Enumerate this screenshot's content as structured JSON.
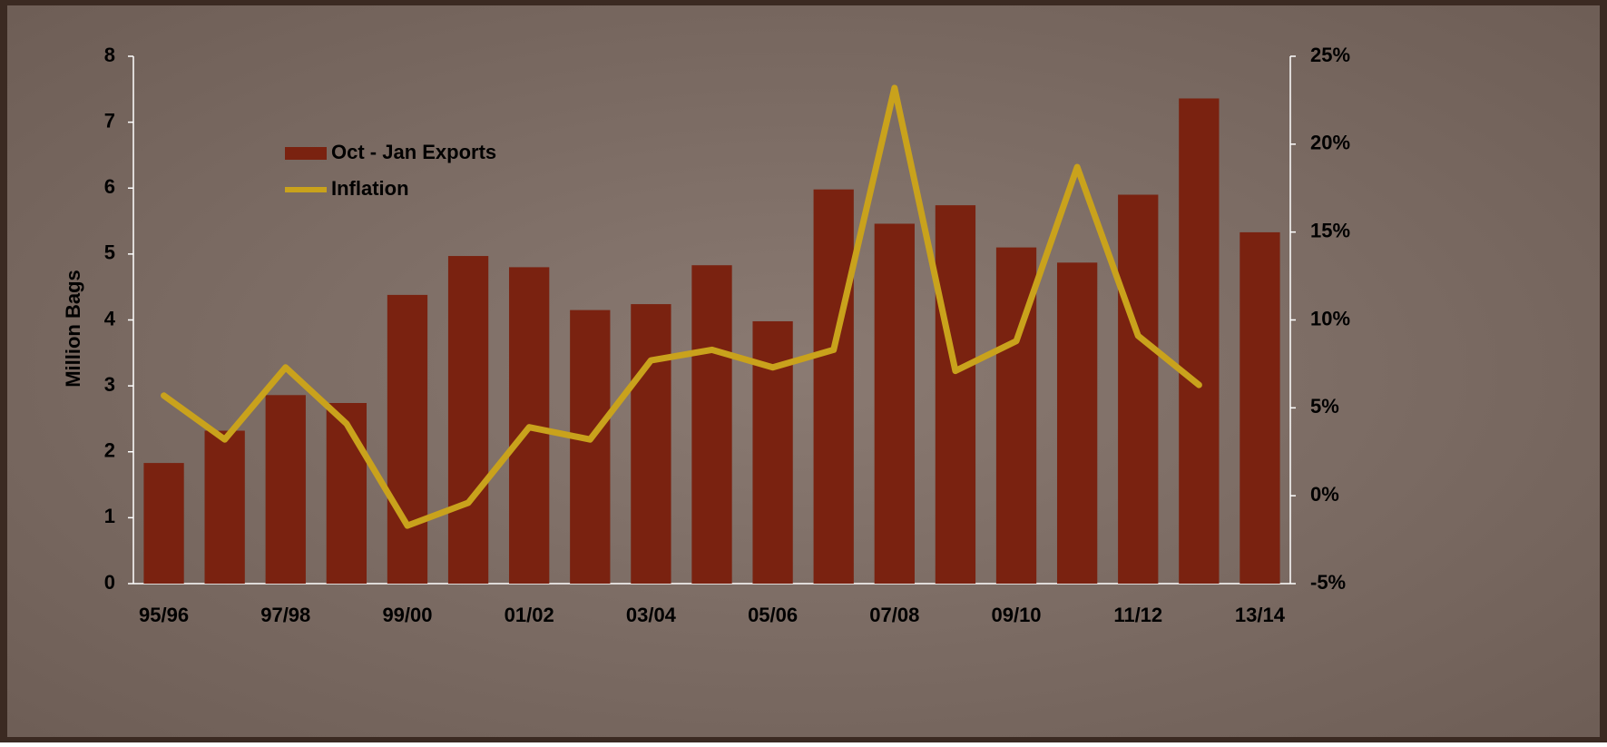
{
  "chart_data": {
    "type": "bar-line",
    "y_label": "Million Bags",
    "categories": [
      "95/96",
      null,
      "97/98",
      null,
      "99/00",
      null,
      "01/02",
      null,
      "03/04",
      null,
      "05/06",
      null,
      "07/08",
      null,
      "09/10",
      null,
      "11/12",
      null,
      "13/14"
    ],
    "series": [
      {
        "name": "Oct - Jan Exports",
        "type": "bar",
        "color": "#7a2210",
        "values": [
          1.83,
          2.32,
          2.86,
          2.74,
          4.38,
          4.97,
          4.8,
          4.15,
          4.24,
          4.83,
          3.98,
          5.98,
          5.46,
          5.74,
          5.1,
          4.87,
          5.9,
          7.36,
          5.33
        ]
      },
      {
        "name": "Inflation",
        "type": "line",
        "axis": "y2",
        "color": "#c9a21c",
        "values": [
          5.7,
          3.2,
          7.3,
          4.1,
          -1.7,
          -0.4,
          3.9,
          3.2,
          7.7,
          8.3,
          7.3,
          8.3,
          23.2,
          7.1,
          8.8,
          18.7,
          9.1,
          6.3,
          null
        ]
      }
    ],
    "ylim": [
      0,
      8
    ],
    "yticks": [
      0,
      1,
      2,
      3,
      4,
      5,
      6,
      7,
      8
    ],
    "y2lim": [
      -5,
      25
    ],
    "y2ticks": [
      {
        "value": -5,
        "label": "-5%"
      },
      {
        "value": 0,
        "label": "0%"
      },
      {
        "value": 5,
        "label": "5%"
      },
      {
        "value": 10,
        "label": "10%"
      },
      {
        "value": 15,
        "label": "15%"
      },
      {
        "value": 20,
        "label": "20%"
      },
      {
        "value": 25,
        "label": "25%"
      }
    ],
    "legend": "top-left"
  }
}
